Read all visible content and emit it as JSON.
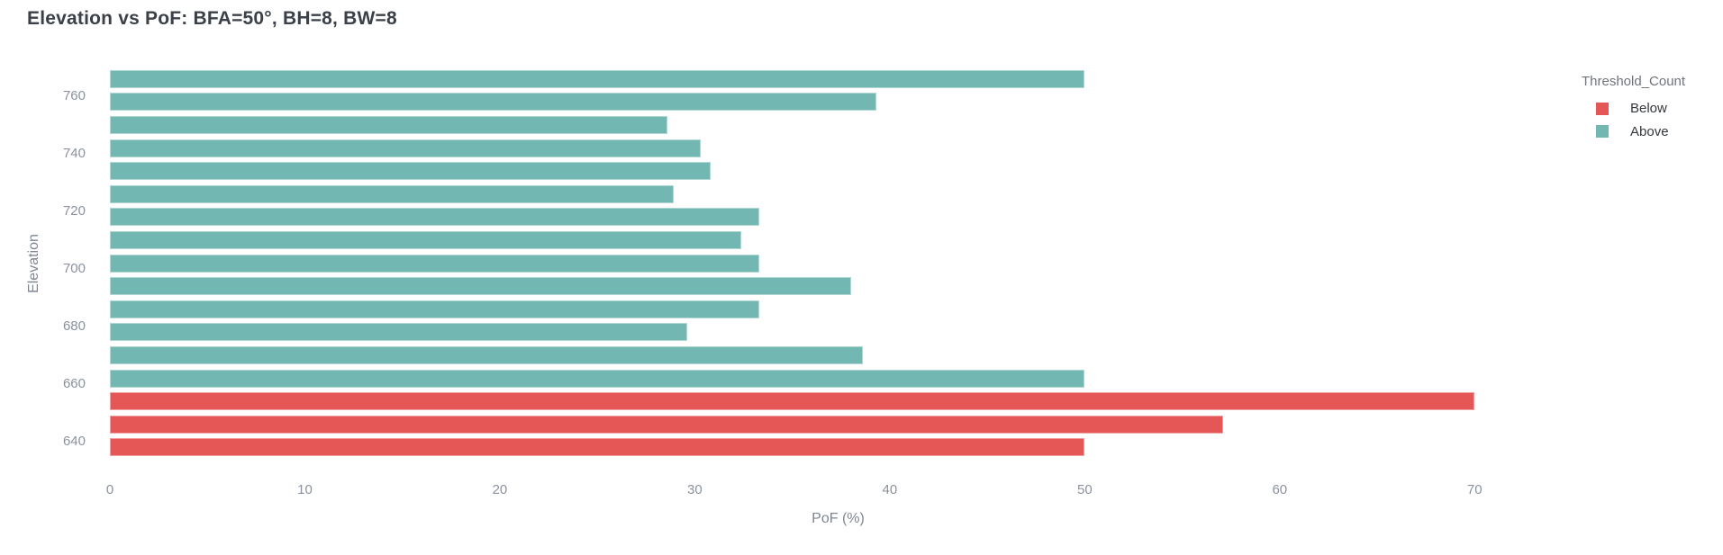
{
  "title": "Elevation vs PoF: BFA=50°, BH=8, BW=8",
  "axes": {
    "x_label": "PoF (%)",
    "y_label": "Elevation",
    "x_ticks": [
      "0",
      "10",
      "20",
      "30",
      "40",
      "50",
      "60",
      "70"
    ],
    "y_ticks": [
      "760",
      "740",
      "720",
      "700",
      "680",
      "660",
      "640"
    ]
  },
  "legend": {
    "title": "Threshold_Count",
    "items": [
      {
        "label": "Below",
        "color": "#e45756"
      },
      {
        "label": "Above",
        "color": "#72b7b2"
      }
    ]
  },
  "colors": {
    "background": "#ffffff",
    "bar_above": "#72b7b2",
    "bar_below": "#e45756",
    "title_text": "#3c4149",
    "tick_text": "#8b91a0",
    "axis_title_text": "#7e8594",
    "legend_title_text": "#6f737c",
    "legend_label_text": "#34373c"
  },
  "chart_data": {
    "type": "bar",
    "orientation": "horizontal",
    "title": "Elevation vs PoF: BFA=50°, BH=8, BW=8",
    "xlabel": "PoF (%)",
    "ylabel": "Elevation",
    "xlim": [
      0,
      74.7
    ],
    "x_tick_values": [
      0,
      10,
      20,
      30,
      40,
      50,
      60,
      70
    ],
    "y_tick_values": [
      760,
      740,
      720,
      700,
      680,
      660,
      640
    ],
    "grid": false,
    "legend_position": "top-right",
    "series_field": "Threshold_Count",
    "series_colors": {
      "Below": "#e45756",
      "Above": "#72b7b2"
    },
    "bars": [
      {
        "elevation": 766,
        "pof": 50.0,
        "threshold": "Above"
      },
      {
        "elevation": 758,
        "pof": 39.3,
        "threshold": "Above"
      },
      {
        "elevation": 750,
        "pof": 28.6,
        "threshold": "Above"
      },
      {
        "elevation": 742,
        "pof": 30.3,
        "threshold": "Above"
      },
      {
        "elevation": 734,
        "pof": 30.8,
        "threshold": "Above"
      },
      {
        "elevation": 726,
        "pof": 28.9,
        "threshold": "Above"
      },
      {
        "elevation": 718,
        "pof": 33.3,
        "threshold": "Above"
      },
      {
        "elevation": 710,
        "pof": 32.4,
        "threshold": "Above"
      },
      {
        "elevation": 702,
        "pof": 33.3,
        "threshold": "Above"
      },
      {
        "elevation": 694,
        "pof": 38.0,
        "threshold": "Above"
      },
      {
        "elevation": 686,
        "pof": 33.3,
        "threshold": "Above"
      },
      {
        "elevation": 678,
        "pof": 29.6,
        "threshold": "Above"
      },
      {
        "elevation": 670,
        "pof": 38.6,
        "threshold": "Above"
      },
      {
        "elevation": 662,
        "pof": 50.0,
        "threshold": "Above"
      },
      {
        "elevation": 654,
        "pof": 70.0,
        "threshold": "Below"
      },
      {
        "elevation": 646,
        "pof": 57.1,
        "threshold": "Below"
      },
      {
        "elevation": 638,
        "pof": 50.0,
        "threshold": "Below"
      }
    ]
  }
}
